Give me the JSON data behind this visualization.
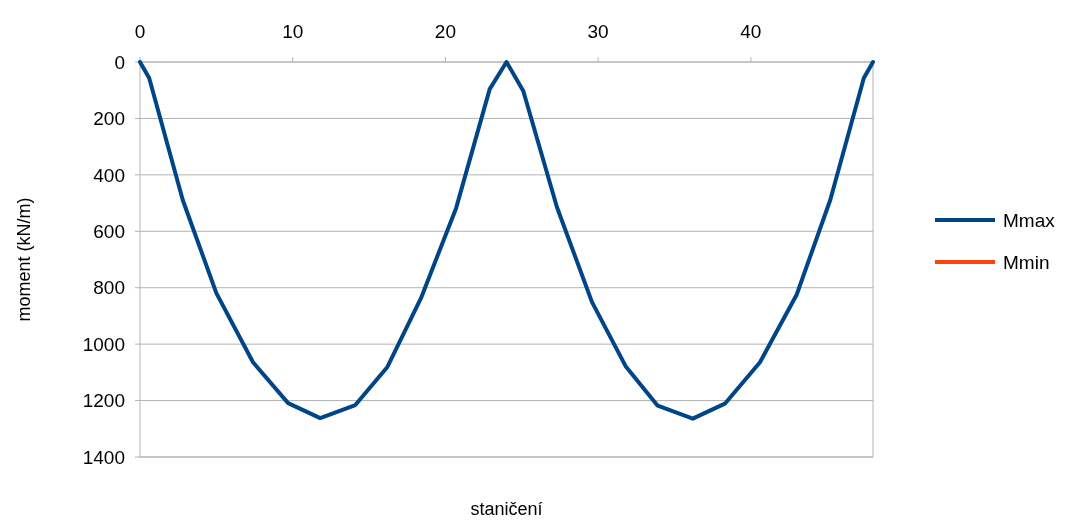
{
  "chart_data": {
    "type": "line",
    "xlabel": "staničení",
    "ylabel": "moment (kN/m)",
    "xlim": [
      0,
      48
    ],
    "xticks": [
      0,
      10,
      20,
      30,
      40
    ],
    "ylim": [
      1400,
      0
    ],
    "yticks": [
      0,
      200,
      400,
      600,
      800,
      1000,
      1200,
      1400
    ],
    "grid": "y",
    "legend": "right",
    "marker": "none",
    "line_style": "solid",
    "x": [
      0,
      0.6,
      2.8,
      5,
      7.4,
      9.7,
      11.8,
      14.1,
      16.2,
      18.4,
      20.7,
      22.9,
      24,
      25.1,
      27.3,
      29.6,
      31.8,
      33.9,
      36.2,
      38.3,
      40.6,
      43,
      45.2,
      47.4,
      48
    ],
    "series": [
      {
        "name": "Mmax",
        "color": "#004586",
        "values": [
          0,
          57,
          489,
          819,
          1064,
          1209,
          1262,
          1216,
          1081,
          837,
          518,
          96,
          0,
          103,
          514,
          851,
          1078,
          1218,
          1264,
          1211,
          1064,
          825,
          489,
          57,
          0
        ]
      },
      {
        "name": "Mmin",
        "color": "#ff420e",
        "values": [
          null,
          null,
          null,
          null,
          null,
          null,
          null,
          null,
          null,
          null,
          null,
          null,
          null,
          null,
          null,
          null,
          null,
          null,
          null,
          null,
          null,
          null,
          null,
          null,
          null
        ]
      }
    ]
  }
}
